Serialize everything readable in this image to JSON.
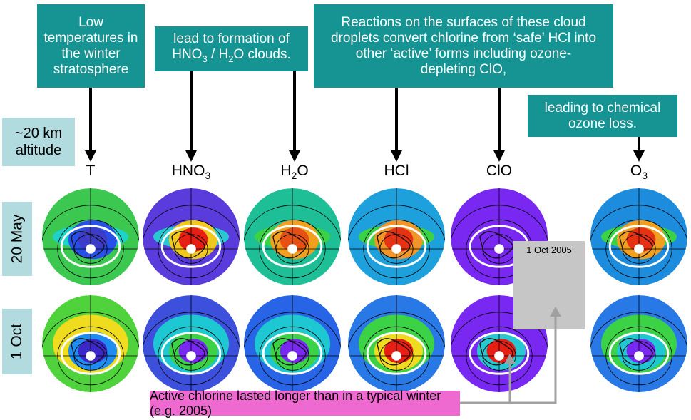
{
  "boxes": {
    "temperature": "Low temperatures in the winter stratosphere",
    "clouds_pre": "lead to formation of",
    "clouds_hno3": "HNO",
    "clouds_sub3": "3",
    "clouds_mid": " / H",
    "clouds_sub2": "2",
    "clouds_post": "O clouds.",
    "reactions": "Reactions on the surfaces of these cloud droplets convert chlorine from ‘safe’ HCl into other ‘active’ forms including ozone-depleting ClO,",
    "ozone_loss": "leading to chemical ozone loss.",
    "altitude": "~20 km altitude",
    "active_chlorine": "Active chlorine lasted longer than in a typical winter (e.g. 2005)"
  },
  "rows": [
    "20 May",
    "1 Oct"
  ],
  "columns": [
    {
      "main": "T",
      "sub": ""
    },
    {
      "main": "HNO",
      "sub": "3"
    },
    {
      "main": "H",
      "sub": "2",
      "post": "O"
    },
    {
      "main": "HCl",
      "sub": ""
    },
    {
      "main": "ClO",
      "sub": ""
    },
    {
      "main": "O",
      "sub": "3"
    }
  ],
  "inset": {
    "label": "1 Oct 2005"
  },
  "colors": {
    "box": "#169494",
    "label_box": "#b2dbe0",
    "highlight": "#ef6ad0",
    "inset": "#c6c6c6",
    "connector": "#a0a0a0"
  },
  "maps": [
    {
      "row": "20 May",
      "col": "T",
      "palette": [
        "#3cc850",
        "#1ed2c8",
        "#2850e6",
        "#3c3cc8"
      ]
    },
    {
      "row": "20 May",
      "col": "HNO3",
      "palette": [
        "#5a3cdc",
        "#28c8d2",
        "#f0c81e",
        "#e61e14"
      ]
    },
    {
      "row": "20 May",
      "col": "H2O",
      "palette": [
        "#1ebe96",
        "#3cd246",
        "#f0a01e",
        "#e65014"
      ]
    },
    {
      "row": "20 May",
      "col": "HCl",
      "palette": [
        "#1ea0dc",
        "#3cd246",
        "#f09628",
        "#e63214"
      ]
    },
    {
      "row": "20 May",
      "col": "ClO",
      "palette": [
        "#7828f0",
        "#7828f0",
        "#7828f0",
        "#7828f0"
      ]
    },
    {
      "row": "20 May",
      "col": "O3",
      "palette": [
        "#1e8cdc",
        "#3cd246",
        "#f0a01e",
        "#e63214"
      ]
    },
    {
      "row": "1 Oct",
      "col": "T",
      "palette": [
        "#50d23c",
        "#f0dc1e",
        "#1e8cf0",
        "#3c28c8"
      ]
    },
    {
      "row": "1 Oct",
      "col": "HNO3",
      "palette": [
        "#3c50dc",
        "#1ec8d2",
        "#3cd246",
        "#7828f0"
      ]
    },
    {
      "row": "1 Oct",
      "col": "H2O",
      "palette": [
        "#2864e6",
        "#1ec8d2",
        "#3cd246",
        "#7828f0"
      ]
    },
    {
      "row": "1 Oct",
      "col": "HCl",
      "palette": [
        "#2878e6",
        "#3cd246",
        "#f0dc1e",
        "#e61e14"
      ]
    },
    {
      "row": "1 Oct",
      "col": "ClO",
      "palette": [
        "#7828f0",
        "#7828f0",
        "#28c8d2",
        "#e61e14"
      ]
    },
    {
      "row": "1 Oct",
      "col": "O3",
      "palette": [
        "#2878e6",
        "#3cd246",
        "#1ec8d2",
        "#7828f0"
      ]
    }
  ]
}
